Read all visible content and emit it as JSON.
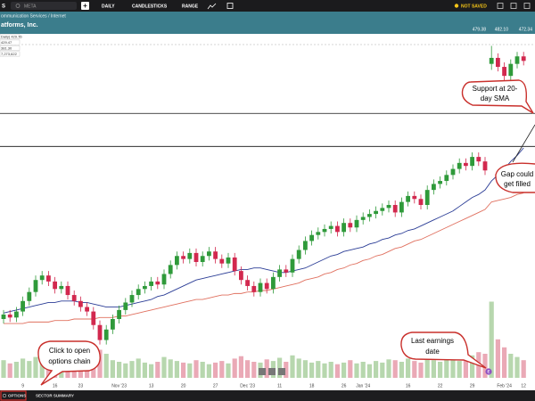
{
  "toolbar": {
    "symbol": "S",
    "search": "META",
    "interval": "DAILY",
    "chart_style": "CANDLESTICKS",
    "range": "RANGE",
    "status": "NOT SAVED"
  },
  "header": {
    "sector": "ommunication Services / Internet",
    "company": "atforms, Inc.",
    "quote": [
      "479.38",
      "482.10",
      "472.34"
    ]
  },
  "legend": [
    "Daily) 429.76",
    "429.47",
    "381.30",
    "7,273,622"
  ],
  "callouts": {
    "support": [
      "Support at 20-",
      "day SMA"
    ],
    "gap": [
      "Gap could",
      "get filled"
    ],
    "options": [
      "Click to open",
      "options chain"
    ],
    "earnings": [
      "Last earnings",
      "date"
    ]
  },
  "earnings_marker": "E",
  "footer": {
    "options": "OPTIONS",
    "sector_summary": "SECTOR SUMMARY"
  },
  "chart_data": {
    "type": "candlestick",
    "categories": [
      null,
      null,
      null,
      "9",
      null,
      null,
      null,
      null,
      "16",
      null,
      null,
      null,
      "23",
      null,
      null,
      null,
      null,
      null,
      "Nov '23",
      null,
      null,
      null,
      null,
      "13",
      null,
      null,
      null,
      null,
      "20",
      null,
      null,
      null,
      null,
      "27",
      null,
      null,
      null,
      null,
      "Dec '23",
      null,
      null,
      null,
      null,
      "11",
      null,
      null,
      null,
      null,
      "18",
      null,
      null,
      null,
      null,
      "26",
      null,
      null,
      "Jan '24",
      null,
      null,
      null,
      null,
      null,
      null,
      "16",
      null,
      null,
      null,
      null,
      "22",
      null,
      null,
      null,
      null,
      "29",
      null,
      null,
      null,
      null,
      "Feb '24",
      null,
      null,
      "12"
    ],
    "open": [
      300,
      303,
      301,
      305,
      312,
      318,
      326,
      329,
      325,
      320,
      322,
      316,
      312,
      308,
      305,
      296,
      286,
      293,
      300,
      306,
      311,
      316,
      320,
      322,
      325,
      323,
      330,
      336,
      342,
      340,
      344,
      338,
      342,
      345,
      340,
      337,
      341,
      332,
      326,
      322,
      318,
      324,
      320,
      328,
      333,
      331,
      340,
      346,
      352,
      356,
      358,
      360,
      362,
      358,
      364,
      361,
      366,
      368,
      370,
      372,
      374,
      376,
      371,
      378,
      382,
      380,
      376,
      386,
      390,
      392,
      396,
      400,
      404,
      402,
      408,
      405,
      470,
      474,
      468,
      462,
      470,
      475
    ],
    "high": [
      306,
      306,
      308,
      315,
      321,
      329,
      332,
      332,
      328,
      325,
      325,
      319,
      315,
      311,
      308,
      299,
      296,
      303,
      309,
      314,
      319,
      323,
      325,
      328,
      328,
      333,
      339,
      345,
      345,
      347,
      347,
      345,
      348,
      348,
      343,
      344,
      344,
      335,
      329,
      325,
      327,
      327,
      331,
      336,
      336,
      343,
      349,
      355,
      359,
      361,
      363,
      365,
      365,
      367,
      367,
      369,
      371,
      373,
      375,
      377,
      379,
      379,
      381,
      385,
      385,
      383,
      389,
      393,
      395,
      399,
      403,
      407,
      407,
      411,
      411,
      408,
      482,
      477,
      471,
      473,
      478,
      478
    ],
    "low": [
      297,
      298,
      298,
      302,
      309,
      315,
      323,
      322,
      317,
      317,
      313,
      309,
      305,
      302,
      293,
      283,
      283,
      290,
      297,
      303,
      308,
      313,
      317,
      319,
      320,
      320,
      327,
      333,
      337,
      337,
      335,
      335,
      339,
      337,
      334,
      334,
      329,
      323,
      319,
      315,
      315,
      317,
      317,
      325,
      328,
      328,
      337,
      343,
      349,
      353,
      355,
      357,
      355,
      355,
      358,
      358,
      363,
      365,
      367,
      369,
      371,
      368,
      368,
      375,
      377,
      373,
      373,
      383,
      387,
      389,
      393,
      397,
      399,
      399,
      402,
      396,
      466,
      465,
      459,
      459,
      467,
      469
    ],
    "close": [
      303,
      301,
      305,
      312,
      318,
      326,
      329,
      325,
      320,
      322,
      316,
      312,
      308,
      305,
      296,
      286,
      293,
      300,
      306,
      311,
      316,
      320,
      322,
      325,
      323,
      330,
      336,
      342,
      340,
      344,
      338,
      342,
      345,
      340,
      337,
      341,
      332,
      326,
      322,
      318,
      324,
      320,
      328,
      333,
      331,
      340,
      346,
      352,
      356,
      358,
      360,
      362,
      358,
      364,
      361,
      366,
      368,
      370,
      372,
      374,
      376,
      371,
      378,
      382,
      380,
      376,
      386,
      390,
      392,
      396,
      400,
      404,
      402,
      408,
      405,
      399,
      474,
      468,
      462,
      470,
      475,
      472
    ],
    "volume": [
      22,
      18,
      20,
      24,
      21,
      26,
      19,
      23,
      20,
      18,
      22,
      25,
      19,
      21,
      28,
      35,
      30,
      22,
      20,
      18,
      21,
      24,
      19,
      17,
      20,
      26,
      23,
      21,
      19,
      18,
      22,
      20,
      17,
      19,
      21,
      18,
      24,
      27,
      22,
      20,
      19,
      23,
      21,
      25,
      20,
      28,
      24,
      22,
      19,
      21,
      18,
      20,
      17,
      19,
      22,
      18,
      20,
      17,
      21,
      19,
      23,
      22,
      20,
      24,
      21,
      19,
      25,
      22,
      20,
      23,
      26,
      21,
      24,
      28,
      32,
      30,
      95,
      48,
      38,
      30,
      26,
      22
    ],
    "sma20": {
      "color": "#2b3d96",
      "values": [
        304,
        305,
        306,
        307,
        308,
        309,
        310,
        311,
        311,
        312,
        312,
        312,
        311,
        311,
        310,
        309,
        308,
        308,
        308,
        309,
        310,
        311,
        312,
        313,
        315,
        316,
        318,
        320,
        322,
        324,
        326,
        327,
        328,
        329,
        330,
        331,
        332,
        333,
        333,
        334,
        334,
        333,
        332,
        331,
        331,
        332,
        333,
        334,
        336,
        338,
        340,
        342,
        343,
        345,
        346,
        347,
        348,
        350,
        351,
        353,
        354,
        356,
        357,
        359,
        360,
        362,
        364,
        366,
        368,
        370,
        372,
        375,
        378,
        381,
        383,
        386,
        392,
        396,
        400,
        405,
        409,
        414
      ]
    },
    "sma50": {
      "color": "#e0705f",
      "values": [
        297,
        297,
        297,
        297,
        298,
        298,
        298,
        298,
        299,
        299,
        299,
        300,
        300,
        300,
        300,
        301,
        301,
        301,
        302,
        302,
        303,
        304,
        305,
        306,
        307,
        308,
        309,
        310,
        311,
        312,
        313,
        313,
        314,
        315,
        316,
        316,
        317,
        317,
        318,
        318,
        319,
        319,
        320,
        321,
        322,
        323,
        324,
        326,
        327,
        328,
        330,
        331,
        333,
        334,
        336,
        337,
        339,
        340,
        342,
        343,
        345,
        347,
        348,
        350,
        352,
        353,
        355,
        357,
        359,
        361,
        363,
        365,
        367,
        369,
        371,
        373,
        378,
        379,
        380,
        381,
        383,
        384
      ]
    },
    "levels": [
      437,
      415
    ],
    "up_color": "#2f9a3a",
    "down_color": "#d2284e",
    "volume_up_color": "#b7d7ae",
    "volume_down_color": "#eaa9b6",
    "ylim": [
      262,
      490
    ],
    "vlim": [
      0,
      100
    ]
  }
}
